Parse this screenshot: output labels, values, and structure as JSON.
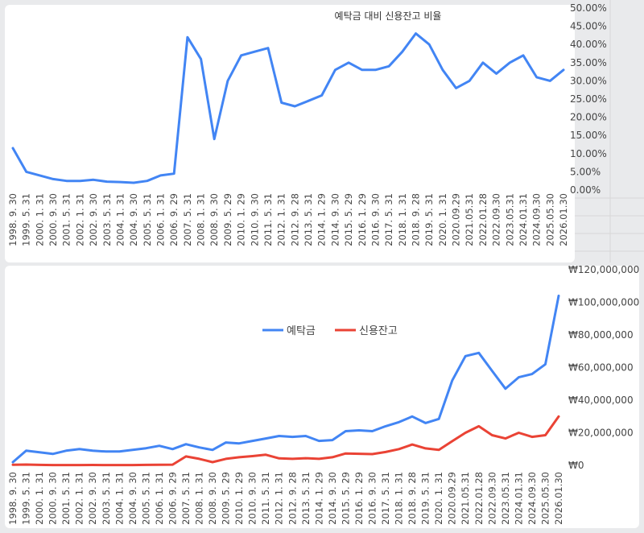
{
  "charts": {
    "ratio": {
      "title": "예탁금 대비 신용잔고 비율",
      "y_ticks": [
        "0.00%",
        "5.00%",
        "10.00%",
        "15.00%",
        "20.00%",
        "25.00%",
        "30.00%",
        "35.00%",
        "40.00%",
        "45.00%",
        "50.00%"
      ],
      "color": "#4285f4"
    },
    "balances": {
      "y_ticks": [
        "₩0",
        "₩20,000,000",
        "₩40,000,000",
        "₩60,000,000",
        "₩80,000,000",
        "₩100,000,000",
        "₩120,000,000"
      ],
      "legend": [
        {
          "name": "예탁금",
          "color": "#4285f4"
        },
        {
          "name": "신용잔고",
          "color": "#ea4335"
        }
      ]
    }
  },
  "chart_data": [
    {
      "type": "line",
      "title": "예탁금 대비 신용잔고 비율",
      "ylim": [
        0,
        50
      ],
      "y_unit": "%",
      "x": [
        "1998. 9. 30",
        "1999. 5. 31",
        "2000. 1. 31",
        "2000. 9. 30",
        "2001. 5. 31",
        "2002. 1. 31",
        "2002. 9. 30",
        "2003. 5. 31",
        "2004. 1. 31",
        "2004. 9. 30",
        "2005. 5. 31",
        "2006. 1. 31",
        "2006. 9. 29",
        "2007. 5. 31",
        "2008. 1. 31",
        "2008. 9. 30",
        "2009. 5. 29",
        "2010. 1. 29",
        "2010. 9. 30",
        "2011. 5. 31",
        "2012. 1. 31",
        "2012. 9. 28",
        "2013. 5. 31",
        "2014. 1. 29",
        "2014. 9. 30",
        "2015. 5. 29",
        "2016. 1. 29",
        "2016. 9. 30",
        "2017. 5. 31",
        "2018. 1. 31",
        "2018. 9. 28",
        "2019. 5. 31",
        "2020. 1. 31",
        "2020.09.29",
        "2021.05.31",
        "2022.01.28",
        "2022.09.30",
        "2023.05.31",
        "2024.01.31",
        "2024.09.30",
        "2025.05.30",
        "2026.01.30"
      ],
      "series": [
        {
          "color": "#4285f4",
          "values": [
            11.5,
            5.0,
            4.0,
            3.0,
            2.5,
            2.5,
            2.8,
            2.3,
            2.2,
            2.0,
            2.5,
            4.0,
            4.5,
            42.0,
            36.0,
            14.0,
            30.0,
            37.0,
            38.0,
            39.0,
            24.0,
            23.0,
            24.5,
            26.0,
            33.0,
            35.0,
            33.0,
            33.0,
            34.0,
            38.0,
            43.0,
            40.0,
            33.0,
            28.0,
            30.0,
            35.0,
            32.0,
            35.0,
            37.0,
            31.0,
            30.0,
            33.0
          ]
        }
      ]
    },
    {
      "type": "line",
      "ylim": [
        0,
        120000000
      ],
      "y_unit": "₩",
      "x": [
        "1998. 9. 30",
        "1999. 5. 31",
        "2000. 1. 31",
        "2000. 9. 30",
        "2001. 5. 31",
        "2002. 1. 31",
        "2002. 9. 30",
        "2003. 5. 31",
        "2004. 1. 31",
        "2004. 9. 30",
        "2005. 5. 31",
        "2006. 1. 31",
        "2006. 9. 29",
        "2007. 5. 31",
        "2008. 1. 31",
        "2008. 9. 30",
        "2009. 5. 29",
        "2010. 1. 29",
        "2010. 9. 30",
        "2011. 5. 31",
        "2012. 1. 31",
        "2012. 9. 28",
        "2013. 5. 31",
        "2014. 1. 29",
        "2014. 9. 30",
        "2015. 5. 29",
        "2016. 1. 29",
        "2016. 9. 30",
        "2017. 5. 31",
        "2018. 1. 31",
        "2018. 9. 28",
        "2019. 5. 31",
        "2020. 1. 31",
        "2020.09.29",
        "2021.05.31",
        "2022.01.28",
        "2022.09.30",
        "2023.05.31",
        "2024.01.31",
        "2024.09.30",
        "2025.05.30",
        "2026.01.30"
      ],
      "series": [
        {
          "name": "예탁금",
          "color": "#4285f4",
          "values": [
            2000000,
            9000000,
            8000000,
            7000000,
            9000000,
            10000000,
            9000000,
            8500000,
            8500000,
            9500000,
            10500000,
            12000000,
            10000000,
            13000000,
            11000000,
            9500000,
            14000000,
            13500000,
            15000000,
            16500000,
            18000000,
            17500000,
            18000000,
            15000000,
            15500000,
            21000000,
            21500000,
            21000000,
            24000000,
            26500000,
            30000000,
            26000000,
            28500000,
            52000000,
            67000000,
            69000000,
            58000000,
            47000000,
            54000000,
            56000000,
            62000000,
            104000000
          ]
        },
        {
          "name": "신용잔고",
          "color": "#ea4335",
          "values": [
            400000,
            500000,
            300000,
            200000,
            200000,
            200000,
            250000,
            200000,
            200000,
            200000,
            300000,
            400000,
            450000,
            5500000,
            4000000,
            2000000,
            4000000,
            5000000,
            5700000,
            6500000,
            4300000,
            4000000,
            4400000,
            4000000,
            5000000,
            7300000,
            7100000,
            6900000,
            8200000,
            10000000,
            12800000,
            10400000,
            9500000,
            14800000,
            20000000,
            24000000,
            18500000,
            16500000,
            20000000,
            17500000,
            18500000,
            30000000
          ]
        }
      ]
    }
  ]
}
